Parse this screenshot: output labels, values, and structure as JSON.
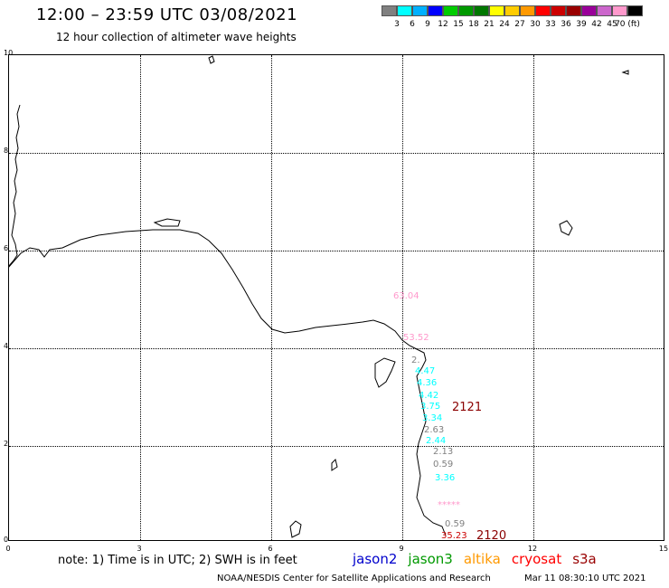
{
  "title": "12:00 – 23:59 UTC 03/08/2021",
  "subtitle": "12 hour collection of altimeter wave heights",
  "legend": {
    "colors": [
      "#808080",
      "#00ffff",
      "#00b0ff",
      "#0000ff",
      "#00cc00",
      "#009900",
      "#007700",
      "#ffff00",
      "#ffcc00",
      "#ff9900",
      "#ff0000",
      "#cc0000",
      "#990000",
      "#990099",
      "#cc66cc",
      "#ff99cc",
      "#000000"
    ],
    "labels": [
      "3",
      "6",
      "9",
      "12",
      "15",
      "18",
      "21",
      "24",
      "27",
      "30",
      "33",
      "36",
      "39",
      "42",
      "45",
      "70 (ft)"
    ]
  },
  "y_ticks": [
    "10",
    "8",
    "6",
    "4",
    "2",
    "0"
  ],
  "x_ticks": [
    "0",
    "3",
    "6",
    "9",
    "12",
    "15"
  ],
  "observations": [
    {
      "text": "63.04",
      "color": "#ff99cc"
    },
    {
      "text": "53.52",
      "color": "#ff99cc"
    },
    {
      "text": "2.",
      "color": "#808080"
    },
    {
      "text": "4.47",
      "color": "#00ffff"
    },
    {
      "text": "4.36",
      "color": "#00ffff"
    },
    {
      "text": "4.42",
      "color": "#00ffff"
    },
    {
      "text": "3.75",
      "color": "#00ffff"
    },
    {
      "text": "3.34",
      "color": "#00ffff"
    },
    {
      "text": "2.63",
      "color": "#808080"
    },
    {
      "text": "2.44",
      "color": "#00ffff"
    },
    {
      "text": "2.13",
      "color": "#808080"
    },
    {
      "text": "0.59",
      "color": "#808080"
    },
    {
      "text": "3.36",
      "color": "#00ffff"
    },
    {
      "text": "*****",
      "color": "#ff99cc"
    },
    {
      "text": "0.59",
      "color": "#808080"
    },
    {
      "text": "35.23",
      "color": "#cc0000"
    }
  ],
  "pass_labels": [
    "2121",
    "2120"
  ],
  "note": "note: 1) Time is in UTC; 2) SWH is in feet",
  "satellites": [
    {
      "name": "jason2",
      "color": "#0000cc"
    },
    {
      "name": "jason3",
      "color": "#009900"
    },
    {
      "name": "altika",
      "color": "#ff9900"
    },
    {
      "name": "cryosat",
      "color": "#ff0000"
    },
    {
      "name": "s3a",
      "color": "#990000"
    }
  ],
  "credit": "NOAA/NESDIS Center for Satellite Applications and Research",
  "timestamp": "Mar 11 08:30:10 UTC 2021"
}
